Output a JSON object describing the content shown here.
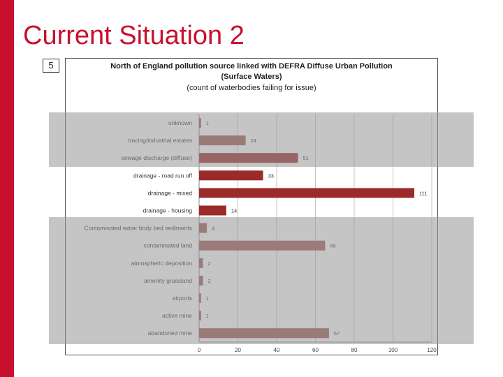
{
  "slide": {
    "title": "Current Situation 2",
    "number": "5"
  },
  "colors": {
    "accent": "#c8102e",
    "bar_primary": "#9b2a2a",
    "bar_secondary": "#a35a5a",
    "highlight_band": "#969696"
  },
  "chart_data": {
    "type": "bar",
    "orientation": "horizontal",
    "title": "North of England pollution source linked with DEFRA  Diffuse Urban Pollution",
    "subtitle": "(Surface Waters)",
    "subtitle2": "(count of waterbodies failing for issue)",
    "categories": [
      "unknown",
      "tracing/industrial estates",
      "sewage discharge (diffuse)",
      "drainage - road run off",
      "drainage - mixed",
      "drainage - housing",
      "Contaminated water body bed sediments",
      "contaminated land",
      "atmospheric deposition",
      "amenity grassland",
      "airports",
      "active mine",
      "abandoned mine"
    ],
    "values": [
      1,
      24,
      51,
      33,
      111,
      14,
      4,
      65,
      2,
      2,
      1,
      1,
      67
    ],
    "xlim": [
      0,
      120
    ],
    "xticks": [
      0,
      20,
      40,
      60,
      80,
      100,
      120
    ],
    "grid": true,
    "highlighted_groups": [
      [
        0,
        2
      ],
      [
        6,
        12
      ]
    ]
  }
}
